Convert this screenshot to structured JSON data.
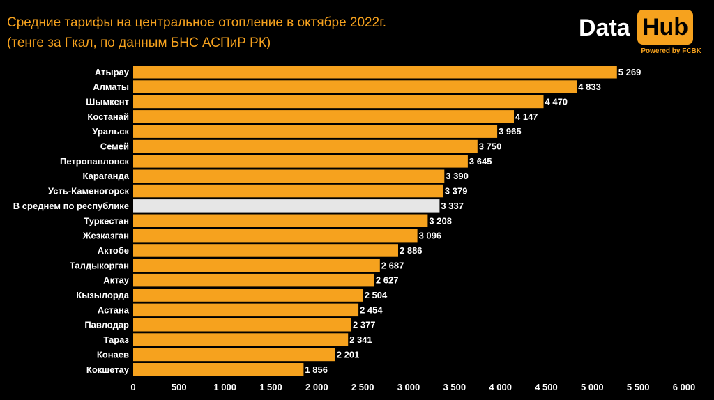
{
  "header": {
    "title_line1": "Средние тарифы на центральное отопление в октябре 2022г.",
    "title_line2": "(тенге за Гкал, по данным БНС АСПиР РК)"
  },
  "logo": {
    "word_data": "Data",
    "word_hub": "Hub",
    "powered": "Powered by FCBK"
  },
  "colors": {
    "background": "#000000",
    "bar": "#f6a21e",
    "highlight_bar": "#e6e6e6",
    "text": "#ffffff",
    "accent": "#f6a21e"
  },
  "chart_data": {
    "type": "bar",
    "orientation": "horizontal",
    "categories": [
      "Атырау",
      "Алматы",
      "Шымкент",
      "Костанай",
      "Уральск",
      "Семей",
      "Петропавловск",
      "Караганда",
      "Усть-Каменогорск",
      "В среднем по республике",
      "Туркестан",
      "Жезказган",
      "Актобе",
      "Талдыкорган",
      "Актау",
      "Кызылорда",
      "Астана",
      "Павлодар",
      "Тараз",
      "Конаев",
      "Кокшетау"
    ],
    "values": [
      5269,
      4833,
      4470,
      4147,
      3965,
      3750,
      3645,
      3390,
      3379,
      3337,
      3208,
      3096,
      2886,
      2687,
      2627,
      2504,
      2454,
      2377,
      2341,
      2201,
      1856
    ],
    "value_labels": [
      "5 269",
      "4 833",
      "4 470",
      "4 147",
      "3 965",
      "3 750",
      "3 645",
      "3 390",
      "3 379",
      "3 337",
      "3 208",
      "3 096",
      "2 886",
      "2 687",
      "2 627",
      "2 504",
      "2 454",
      "2 377",
      "2 341",
      "2 201",
      "1 856"
    ],
    "highlight_category": "В среднем по республике",
    "xlim": [
      0,
      6000
    ],
    "x_ticks": [
      0,
      500,
      1000,
      1500,
      2000,
      2500,
      3000,
      3500,
      4000,
      4500,
      5000,
      5500,
      6000
    ],
    "x_tick_labels": [
      "0",
      "500",
      "1 000",
      "1 500",
      "2 000",
      "2 500",
      "3 000",
      "3 500",
      "4 000",
      "4 500",
      "5 000",
      "5 500",
      "6 000"
    ],
    "title": "Средние тарифы на центральное отопление в октябре 2022г.",
    "subtitle": "(тенге за Гкал, по данным БНС АСПиР РК)",
    "xlabel": "",
    "ylabel": "",
    "grid": false,
    "legend": "none"
  }
}
